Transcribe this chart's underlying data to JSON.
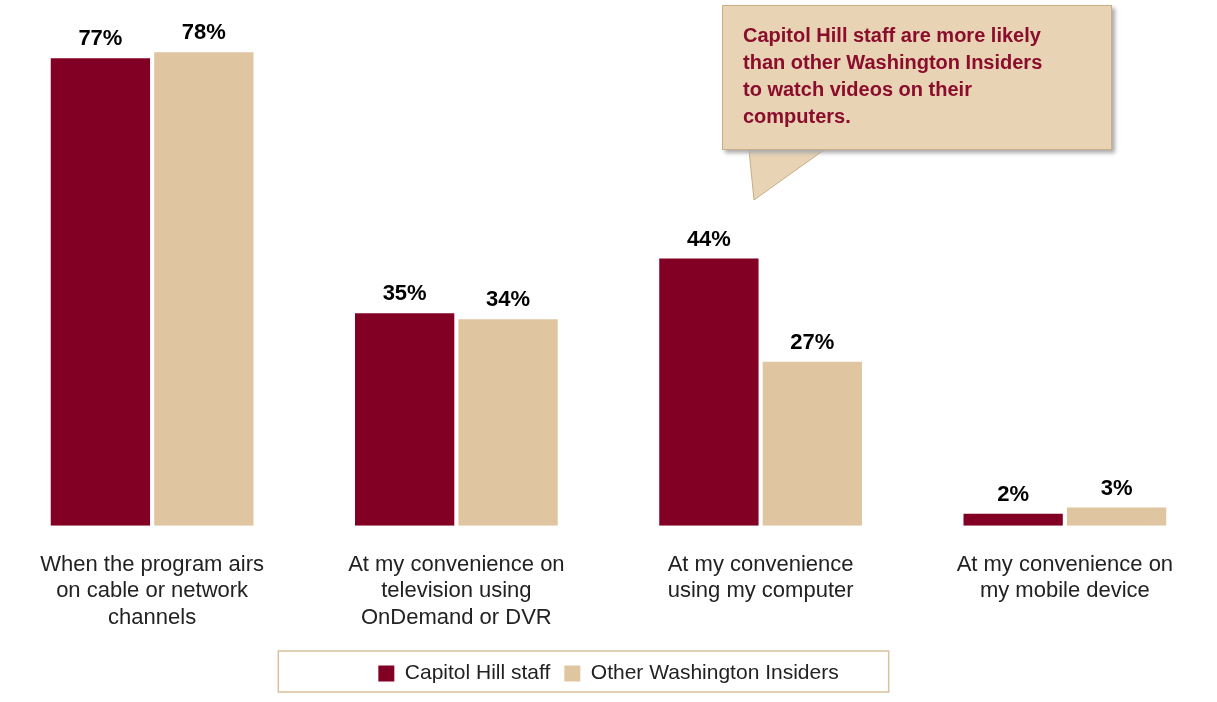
{
  "chart_data": {
    "type": "bar",
    "categories": [
      "When the program airs on cable or network channels",
      "At my convenience on television using OnDemand or DVR",
      "At my convenience using my computer",
      "At my convenience on my mobile device"
    ],
    "series": [
      {
        "name": "Capitol Hill staff",
        "color": "#820024",
        "values": [
          77,
          35,
          44,
          2
        ],
        "value_labels": [
          "77%",
          "35%",
          "44%",
          "2%"
        ]
      },
      {
        "name": "Other Washington Insiders",
        "color": "#dfc6a0",
        "values": [
          78,
          34,
          27,
          3
        ],
        "value_labels": [
          "78%",
          "34%",
          "27%",
          "3%"
        ]
      }
    ],
    "legend": "bottom",
    "grid": false,
    "annotations": [
      "Capitol Hill staff are more likely than other Washington Insiders to watch videos on their computers."
    ]
  }
}
